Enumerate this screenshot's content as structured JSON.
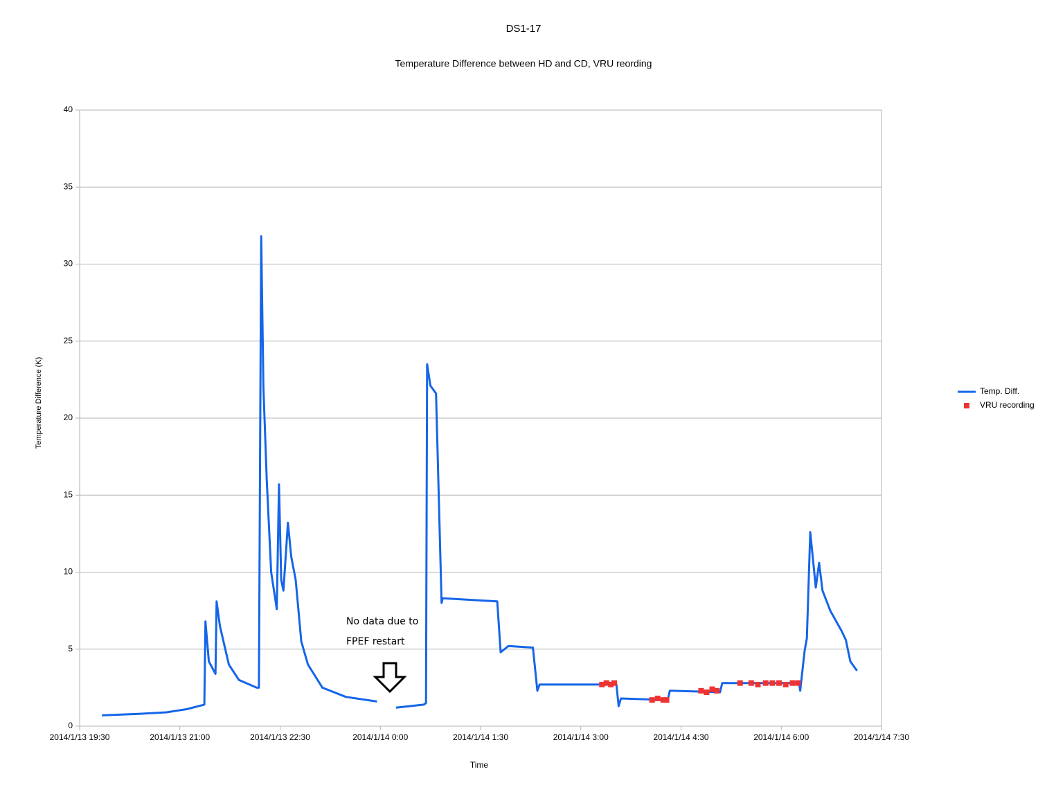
{
  "chart_data": {
    "type": "line",
    "title": "DS1-17",
    "subtitle": "Temperature Difference between HD and CD, VRU reording",
    "x_label": "Time",
    "y_label": "Temperature Difference (K)",
    "annotation": [
      "No data due to",
      "FPEF restart"
    ],
    "xlim": [
      "2014/1/13 19:30",
      "2014/1/14 7:30"
    ],
    "xticks": [
      "2014/1/13 19:30",
      "2014/1/13 21:00",
      "2014/1/13 22:30",
      "2014/1/14 0:00",
      "2014/1/14 1:30",
      "2014/1/14 3:00",
      "2014/1/14 4:30",
      "2014/1/14 6:00",
      "2014/1/14 7:30"
    ],
    "ylim": [
      0,
      40
    ],
    "yticks": [
      0,
      5,
      10,
      15,
      20,
      25,
      30,
      35,
      40
    ],
    "grid": true,
    "legend": "right",
    "series": [
      {
        "name": "Temp. Diff.",
        "type": "line",
        "color": "#1565e8",
        "x": [
          "2014/1/13 19:50",
          "2014/1/13 20:23",
          "2014/1/13 20:48",
          "2014/1/13 21:06",
          "2014/1/13 21:22",
          "2014/1/13 21:23",
          "2014/1/13 21:26",
          "2014/1/13 21:32",
          "2014/1/13 21:33",
          "2014/1/13 21:36",
          "2014/1/13 21:44",
          "2014/1/13 21:53",
          "2014/1/13 22:09",
          "2014/1/13 22:11",
          "2014/1/13 22:13",
          "2014/1/13 22:15",
          "2014/1/13 22:18",
          "2014/1/13 22:22",
          "2014/1/13 22:27",
          "2014/1/13 22:29",
          "2014/1/13 22:31",
          "2014/1/13 22:33",
          "2014/1/13 22:37",
          "2014/1/13 22:40",
          "2014/1/13 22:44",
          "2014/1/13 22:49",
          "2014/1/13 22:55",
          "2014/1/13 23:08",
          "2014/1/13 23:29",
          "2014/1/13 23:57",
          "2014/1/14 0:05",
          "2014/1/14 0:14",
          "2014/1/14 0:39",
          "2014/1/14 0:41",
          "2014/1/14 0:42",
          "2014/1/14 0:45",
          "2014/1/14 0:50",
          "2014/1/14 0:55",
          "2014/1/14 0:56",
          "2014/1/14 1:45",
          "2014/1/14 1:48",
          "2014/1/14 1:55",
          "2014/1/14 2:17",
          "2014/1/14 2:21",
          "2014/1/14 2:23",
          "2014/1/14 3:32",
          "2014/1/14 3:34",
          "2014/1/14 3:36",
          "2014/1/14 4:18",
          "2014/1/14 4:20",
          "2014/1/14 5:05",
          "2014/1/14 5:07",
          "2014/1/14 6:16",
          "2014/1/14 6:17",
          "2014/1/14 6:21",
          "2014/1/14 6:23",
          "2014/1/14 6:26",
          "2014/1/14 6:31",
          "2014/1/14 6:34",
          "2014/1/14 6:37",
          "2014/1/14 6:44",
          "2014/1/14 6:54",
          "2014/1/14 6:58",
          "2014/1/14 7:02",
          "2014/1/14 7:08"
        ],
        "values": [
          0.7,
          0.8,
          0.9,
          1.1,
          1.4,
          6.8,
          4.2,
          3.4,
          8.1,
          6.5,
          4.0,
          3.0,
          2.5,
          2.5,
          31.8,
          22,
          16,
          10,
          7.6,
          15.7,
          9.5,
          8.8,
          13.2,
          11,
          9.5,
          5.5,
          4.0,
          2.5,
          1.9,
          1.6,
          null,
          1.2,
          1.4,
          1.5,
          23.5,
          22.1,
          21.6,
          8.0,
          8.3,
          8.1,
          4.8,
          5.2,
          5.1,
          2.3,
          2.7,
          2.7,
          1.3,
          1.8,
          1.7,
          2.3,
          2.2,
          2.8,
          2.8,
          2.3,
          4.9,
          5.7,
          12.6,
          9.0,
          10.6,
          8.8,
          7.5,
          6.2,
          5.6,
          4.2,
          3.6
        ]
      },
      {
        "name": "VRU recording",
        "type": "scatter",
        "color": "#ee3333",
        "x": [
          "2014/1/14 3:19",
          "2014/1/14 3:23",
          "2014/1/14 3:27",
          "2014/1/14 3:30",
          "2014/1/14 4:04",
          "2014/1/14 4:09",
          "2014/1/14 4:14",
          "2014/1/14 4:17",
          "2014/1/14 4:48",
          "2014/1/14 4:53",
          "2014/1/14 4:58",
          "2014/1/14 5:02",
          "2014/1/14 5:23",
          "2014/1/14 5:33",
          "2014/1/14 5:39",
          "2014/1/14 5:46",
          "2014/1/14 5:52",
          "2014/1/14 5:58",
          "2014/1/14 6:04",
          "2014/1/14 6:10",
          "2014/1/14 6:15"
        ],
        "values": [
          2.7,
          2.8,
          2.7,
          2.8,
          1.7,
          1.8,
          1.7,
          1.7,
          2.3,
          2.2,
          2.4,
          2.3,
          2.8,
          2.8,
          2.7,
          2.8,
          2.8,
          2.8,
          2.7,
          2.8,
          2.8
        ]
      }
    ]
  }
}
